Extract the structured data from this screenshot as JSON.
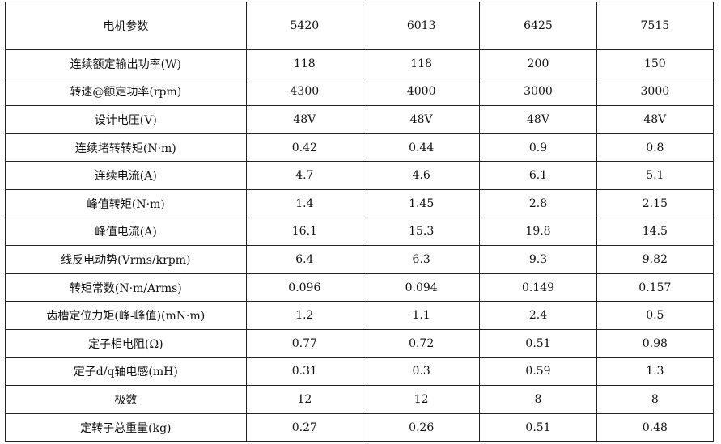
{
  "table": {
    "headers": [
      "电机参数",
      "5420",
      "6013",
      "6425",
      "7515"
    ],
    "rows": [
      {
        "label": "连续额定输出功率(W)",
        "values": [
          "118",
          "118",
          "200",
          "150"
        ]
      },
      {
        "label": "转速@额定功率(rpm)",
        "values": [
          "4300",
          "4000",
          "3000",
          "3000"
        ]
      },
      {
        "label": "设计电压(V)",
        "values": [
          "48V",
          "48V",
          "48V",
          "48V"
        ]
      },
      {
        "label": "连续堵转转矩(N·m)",
        "values": [
          "0.42",
          "0.44",
          "0.9",
          "0.8"
        ]
      },
      {
        "label": "连续电流(A)",
        "values": [
          "4.7",
          "4.6",
          "6.1",
          "5.1"
        ]
      },
      {
        "label": "峰值转矩(N·m)",
        "values": [
          "1.4",
          "1.45",
          "2.8",
          "2.15"
        ]
      },
      {
        "label": "峰值电流(A)",
        "values": [
          "16.1",
          "15.3",
          "19.8",
          "14.5"
        ]
      },
      {
        "label": "线反电动势(Vrms/krpm)",
        "values": [
          "6.4",
          "6.3",
          "9.3",
          "9.82"
        ]
      },
      {
        "label": "转矩常数(N·m/Arms)",
        "values": [
          "0.096",
          "0.094",
          "0.149",
          "0.157"
        ]
      },
      {
        "label": "齿槽定位力矩(峰-峰值)(mN·m)",
        "values": [
          "1.2",
          "1.1",
          "2.4",
          "0.5"
        ]
      },
      {
        "label": "定子相电阻(Ω)",
        "values": [
          "0.77",
          "0.72",
          "0.51",
          "0.98"
        ]
      },
      {
        "label": "定子d/q轴电感(mH)",
        "values": [
          "0.31",
          "0.3",
          "0.59",
          "1.3"
        ]
      },
      {
        "label": "极数",
        "values": [
          "12",
          "12",
          "8",
          "8"
        ]
      },
      {
        "label": "定转子总重量(kg)",
        "values": [
          "0.27",
          "0.26",
          "0.51",
          "0.48"
        ]
      }
    ]
  }
}
